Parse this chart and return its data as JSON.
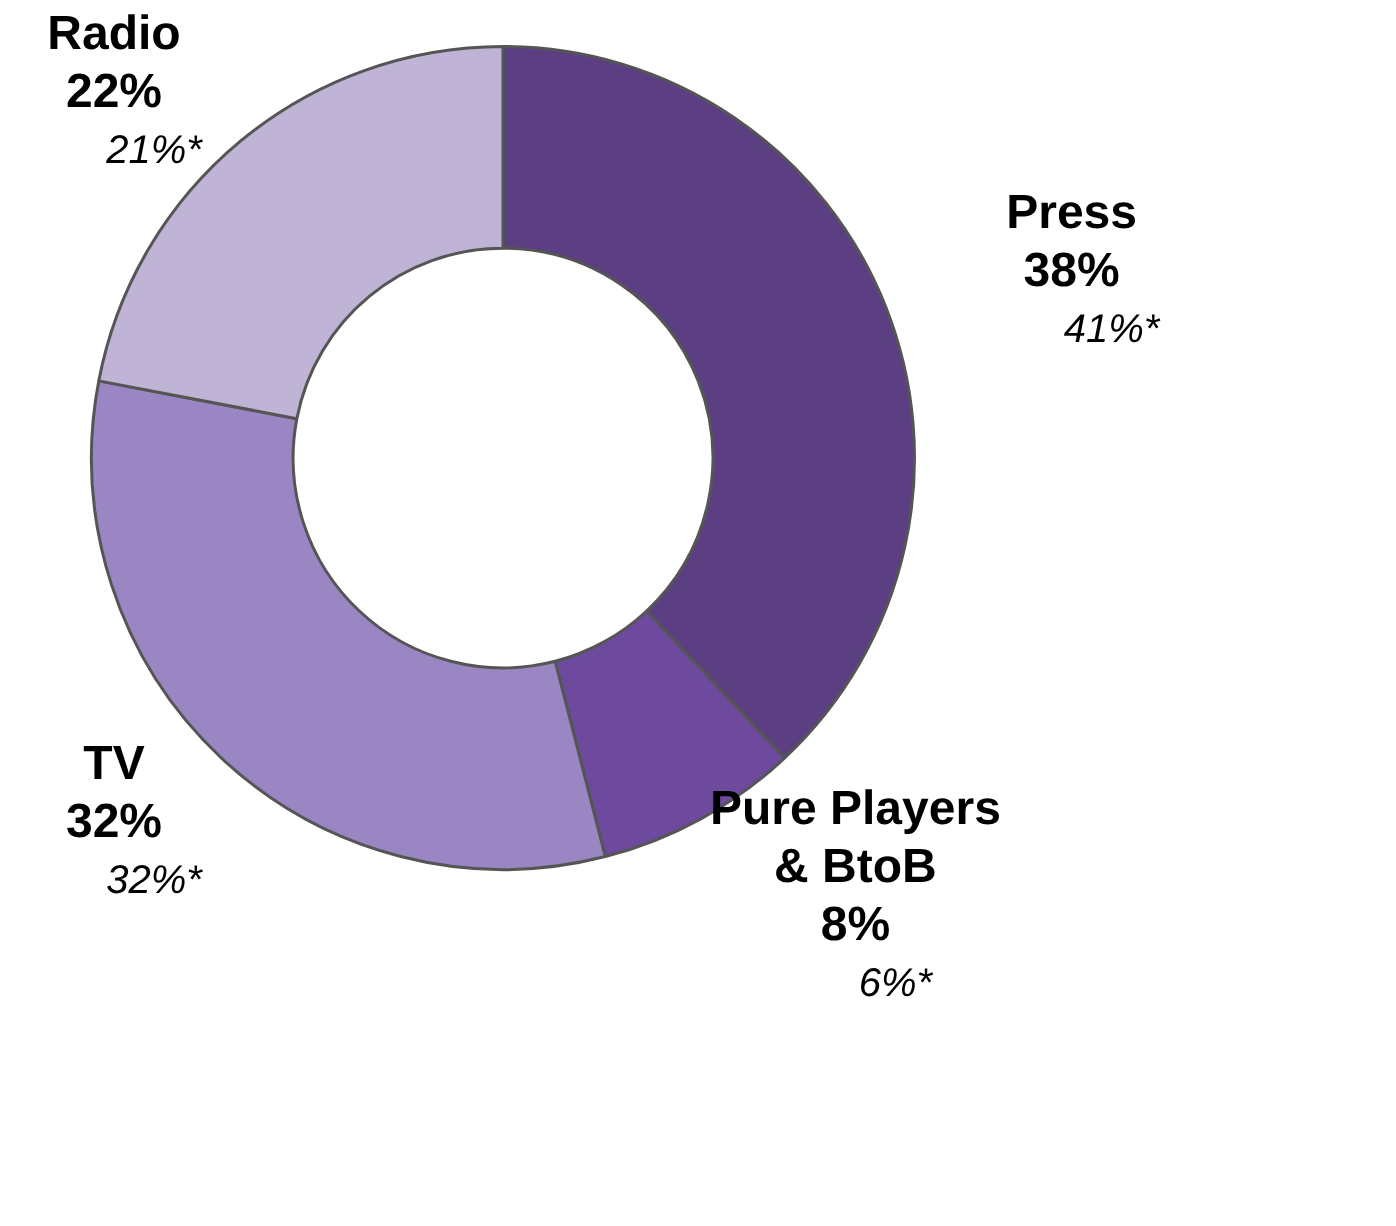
{
  "chart_data": {
    "type": "donut",
    "categories": [
      "Press",
      "Pure Players & BtoB",
      "TV",
      "Radio"
    ],
    "values": [
      38,
      8,
      32,
      22
    ],
    "colors": [
      "#5c3f82",
      "#6e4a9e",
      "#9b86c4",
      "#bfb3d6"
    ],
    "value_labels": [
      "38%",
      "8%",
      "32%",
      "22%"
    ],
    "annotations": [
      {
        "text": "41%*",
        "x": "Press"
      },
      {
        "text": "6%*",
        "x": "Pure Players & BtoB"
      },
      {
        "text": "32%*",
        "x": "TV"
      },
      {
        "text": "21%*",
        "x": "Radio"
      }
    ],
    "legend": false
  }
}
